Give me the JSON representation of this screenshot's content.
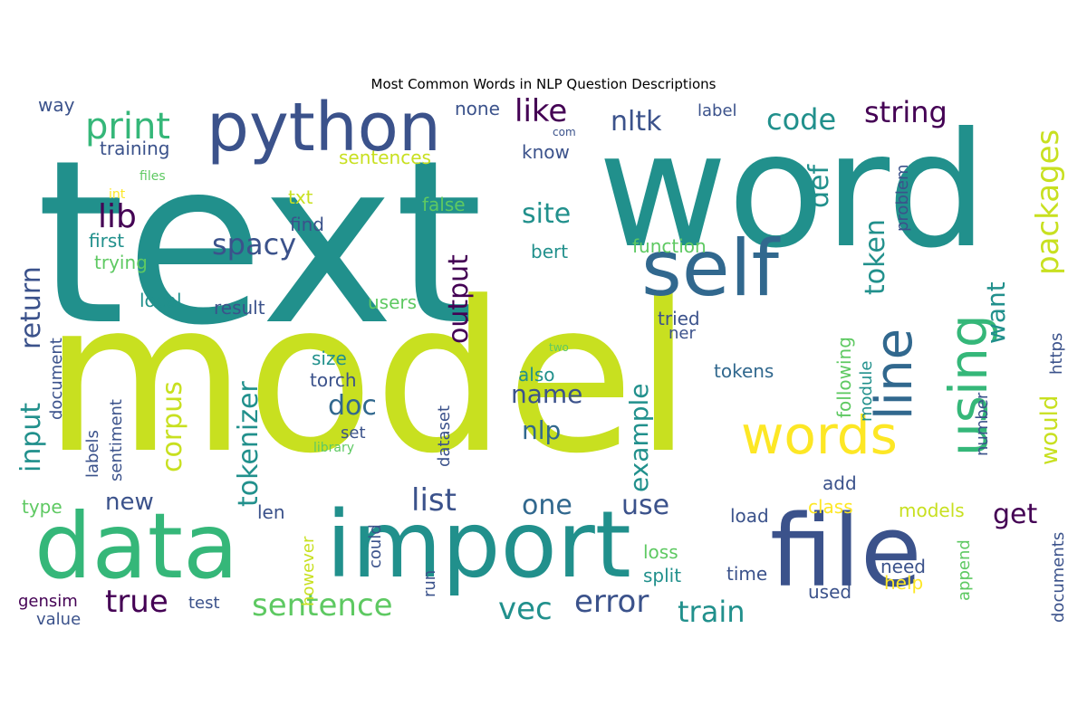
{
  "title": "Most Common Words in NLP Question Descriptions",
  "cloud": {
    "words": [
      "text",
      "model",
      "word",
      "python",
      "self",
      "line",
      "using",
      "data",
      "import",
      "file",
      "words",
      "print",
      "like",
      "nltk",
      "code",
      "string",
      "packages",
      "lib",
      "spacy",
      "site",
      "def",
      "token",
      "return",
      "input",
      "corpus",
      "tokenizer",
      "output",
      "want",
      "would",
      "doc",
      "name",
      "nlp",
      "example",
      "list",
      "one",
      "use",
      "get",
      "new",
      "true",
      "sentence",
      "vec",
      "error",
      "train",
      "document",
      "first",
      "trying",
      "local",
      "result",
      "users",
      "tried",
      "ner",
      "following",
      "module",
      "https",
      "find",
      "txt",
      "false",
      "bert",
      "function",
      "sentences",
      "know",
      "none",
      "way",
      "training",
      "files",
      "int",
      "com",
      "label",
      "problem",
      "size",
      "torch",
      "also",
      "tokens",
      "labels",
      "sentiment",
      "set",
      "library",
      "dataset",
      "two",
      "number",
      "type",
      "len",
      "however",
      "could",
      "run",
      "loss",
      "split",
      "time",
      "need",
      "help",
      "append",
      "documents",
      "add",
      "class",
      "models",
      "load",
      "gensim",
      "test",
      "value",
      "used"
    ],
    "colors": {
      "yellow": "#c8e020",
      "teal": "#21908c",
      "navy": "#3b528b",
      "darkpurple": "#440154",
      "green": "#5ec962"
    }
  }
}
